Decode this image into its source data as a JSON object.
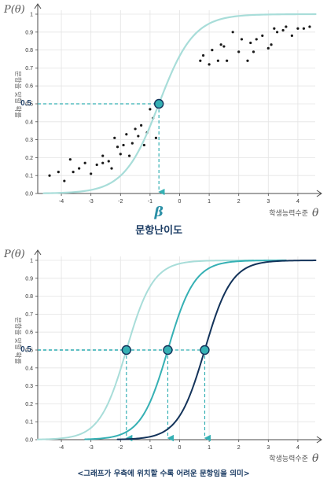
{
  "chart_data": [
    {
      "type": "scatter",
      "title": "",
      "ylabel_math": "P(θ)",
      "ylabel_text": "문항을 맞힐 확률",
      "xlabel_text": "학생능력수준",
      "xlabel_math": "θ",
      "xlim": [
        -4.8,
        4.8
      ],
      "ylim": [
        0,
        1
      ],
      "xticks": [
        "-4",
        "-3",
        "-2",
        "-1",
        "0",
        "1",
        "2",
        "3",
        "4"
      ],
      "yticks": [
        "0.0",
        "0.1",
        "0.2",
        "0.3",
        "0.4",
        "0.5",
        "0.6",
        "0.7",
        "0.8",
        "0.9",
        "1"
      ],
      "highlight_y_label": "0.5",
      "curve": {
        "difficulty": -0.7,
        "discrimination": 1.0,
        "x_range": [
          -4.6,
          4.6
        ],
        "color": "#a8ddd9"
      },
      "marker": {
        "x": -0.7,
        "y": 0.5
      },
      "beta_symbol": "β",
      "beta_label": "문항난이도",
      "points": [
        [
          -4.4,
          0.1
        ],
        [
          -4.1,
          0.12
        ],
        [
          -3.9,
          0.07
        ],
        [
          -3.7,
          0.19
        ],
        [
          -3.6,
          0.12
        ],
        [
          -3.4,
          0.14
        ],
        [
          -3.2,
          0.17
        ],
        [
          -3.0,
          0.11
        ],
        [
          -2.8,
          0.16
        ],
        [
          -2.6,
          0.21
        ],
        [
          -2.6,
          0.17
        ],
        [
          -2.4,
          0.18
        ],
        [
          -2.3,
          0.14
        ],
        [
          -2.2,
          0.31
        ],
        [
          -2.1,
          0.26
        ],
        [
          -2.0,
          0.22
        ],
        [
          -1.9,
          0.27
        ],
        [
          -1.8,
          0.33
        ],
        [
          -1.7,
          0.21
        ],
        [
          -1.6,
          0.28
        ],
        [
          -1.5,
          0.36
        ],
        [
          -1.4,
          0.32
        ],
        [
          -1.3,
          0.38
        ],
        [
          -1.2,
          0.27
        ],
        [
          -1.1,
          0.34
        ],
        [
          -1.0,
          0.47
        ],
        [
          -0.9,
          0.42
        ],
        [
          -0.8,
          0.31
        ],
        [
          0.7,
          0.74
        ],
        [
          0.8,
          0.77
        ],
        [
          1.0,
          0.72
        ],
        [
          1.1,
          0.8
        ],
        [
          1.3,
          0.74
        ],
        [
          1.4,
          0.83
        ],
        [
          1.5,
          0.82
        ],
        [
          1.6,
          0.74
        ],
        [
          1.8,
          0.9
        ],
        [
          2.0,
          0.79
        ],
        [
          2.1,
          0.86
        ],
        [
          2.3,
          0.74
        ],
        [
          2.4,
          0.84
        ],
        [
          2.5,
          0.79
        ],
        [
          2.6,
          0.86
        ],
        [
          2.8,
          0.88
        ],
        [
          3.0,
          0.81
        ],
        [
          3.1,
          0.83
        ],
        [
          3.2,
          0.92
        ],
        [
          3.3,
          0.9
        ],
        [
          3.5,
          0.91
        ],
        [
          3.6,
          0.93
        ],
        [
          3.8,
          0.88
        ],
        [
          4.0,
          0.92
        ],
        [
          4.2,
          0.92
        ],
        [
          4.4,
          0.93
        ]
      ]
    },
    {
      "type": "line",
      "title": "",
      "ylabel_math": "P(θ)",
      "ylabel_text": "문항을 맞힐 확률",
      "xlabel_text": "학생능력수준",
      "xlabel_math": "θ",
      "xlim": [
        -4.8,
        4.8
      ],
      "ylim": [
        0,
        1
      ],
      "xticks": [
        "-4",
        "-3",
        "-2",
        "-1",
        "0",
        "1",
        "2",
        "3",
        "4"
      ],
      "yticks": [
        "0.0",
        "0.1",
        "0.2",
        "0.3",
        "0.4",
        "0.5",
        "0.6",
        "0.7",
        "0.8",
        "0.9",
        "1"
      ],
      "highlight_y_label": "0.5",
      "series": [
        {
          "difficulty": -1.8,
          "discrimination": 1.3,
          "x_range": [
            -4.8,
            2.5
          ],
          "color": "#a8ddd9"
        },
        {
          "difficulty": -0.4,
          "discrimination": 1.3,
          "x_range": [
            -3.2,
            3.6
          ],
          "color": "#35b0b4"
        },
        {
          "difficulty": 0.85,
          "discrimination": 1.3,
          "x_range": [
            -2.1,
            4.6
          ],
          "color": "#13335a"
        }
      ],
      "caption": "<그래프가 우측에 위치할 수록 어려운 문항임을 의미>"
    }
  ],
  "colors": {
    "axis": "#4a4a4a",
    "grid": "#e4e4e4",
    "guide": "#35b0b4",
    "marker_fill": "#35b0b4",
    "marker_stroke": "#13335a",
    "point": "#1a1a1a"
  }
}
